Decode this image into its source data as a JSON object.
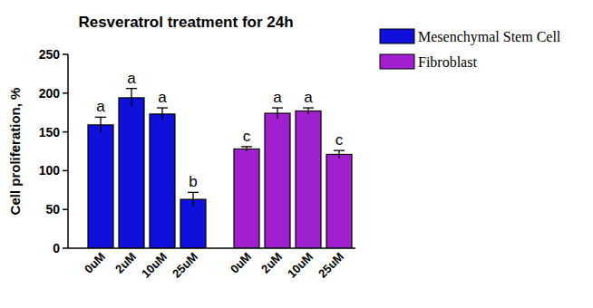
{
  "chart_data": {
    "type": "bar",
    "title": "Resveratrol treatment for 24h",
    "y_label": "Cell proliferation, %",
    "categories": [
      "0uM",
      "2uM",
      "10uM",
      "25uM",
      "0uM",
      "2uM",
      "10uM",
      "25uM"
    ],
    "series": [
      {
        "name": "Mesenchymal Stem Cell",
        "color": "#1010dc",
        "values": [
          159,
          194,
          173,
          63,
          null,
          null,
          null,
          null
        ],
        "errors": [
          10,
          12,
          8,
          9,
          null,
          null,
          null,
          null
        ],
        "significance": [
          "a",
          "a",
          "a",
          "b",
          null,
          null,
          null,
          null
        ]
      },
      {
        "name": "Fibroblast",
        "color": "#a020d0",
        "values": [
          null,
          null,
          null,
          null,
          128,
          174,
          177,
          121
        ],
        "errors": [
          null,
          null,
          null,
          null,
          3,
          7,
          4,
          5
        ],
        "significance": [
          null,
          null,
          null,
          null,
          "c",
          "a",
          "a",
          "c"
        ]
      }
    ],
    "ylim": [
      0,
      250
    ],
    "yticks": [
      0,
      50,
      100,
      150,
      200,
      250
    ],
    "grid": false,
    "legend": "right"
  }
}
